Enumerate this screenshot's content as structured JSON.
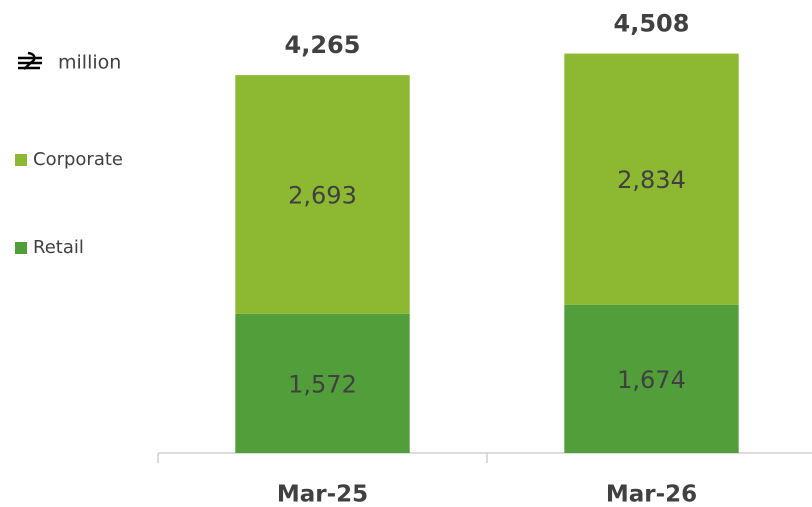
{
  "chart_data": {
    "type": "stacked_bar",
    "unit": "million",
    "categories": [
      "Mar-25",
      "Mar-26"
    ],
    "series": [
      {
        "name": "Retail",
        "color": "#529e3a",
        "values": [
          1572,
          1674
        ],
        "value_labels": [
          "1,572",
          "1,674"
        ]
      },
      {
        "name": "Corporate",
        "color": "#8db832",
        "values": [
          2693,
          2834
        ],
        "value_labels": [
          "2,693",
          "2,834"
        ]
      }
    ],
    "totals": [
      4265,
      4508
    ],
    "total_labels": [
      "4,265",
      "4,508"
    ],
    "ylim": [
      0,
      5000
    ]
  }
}
